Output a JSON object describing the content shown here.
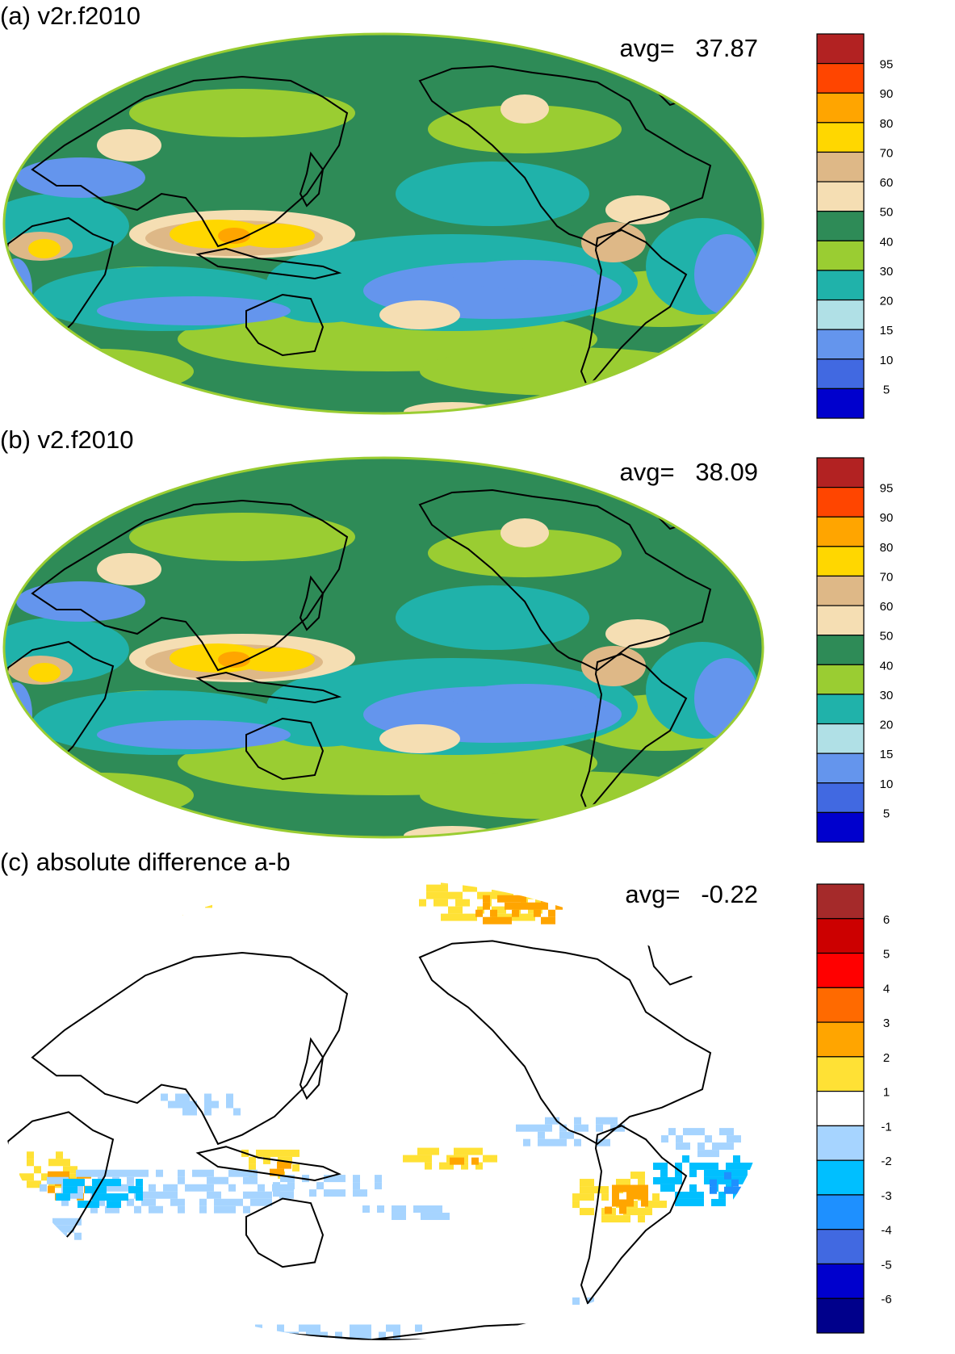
{
  "panels": [
    {
      "id": "a",
      "title": "(a) v2r.f2010",
      "avg_label": "avg=",
      "avg_value": "37.87",
      "colorbar": {
        "labels": [
          "95",
          "90",
          "80",
          "70",
          "60",
          "50",
          "40",
          "30",
          "20",
          "15",
          "10",
          "5"
        ],
        "colors": [
          "#b22222",
          "#ff4500",
          "#ffa500",
          "#ffd700",
          "#deb887",
          "#f5deb3",
          "#2e8b57",
          "#9acd32",
          "#20b2aa",
          "#b0e0e6",
          "#6495ed",
          "#4169e1",
          "#0000cd"
        ]
      },
      "regions": [
        {
          "color": "#9acd32",
          "label": "30"
        },
        {
          "color": "#20b2aa",
          "label": "20"
        },
        {
          "color": "#6495ed",
          "label": "10"
        },
        {
          "color": "#f5deb3",
          "label": "50"
        },
        {
          "color": "#deb887",
          "label": "60"
        },
        {
          "color": "#ffd700",
          "label": "70"
        },
        {
          "color": "#ffa500",
          "label": "80"
        }
      ]
    },
    {
      "id": "b",
      "title": "(b) v2.f2010",
      "avg_label": "avg=",
      "avg_value": "38.09",
      "colorbar": {
        "labels": [
          "95",
          "90",
          "80",
          "70",
          "60",
          "50",
          "40",
          "30",
          "20",
          "15",
          "10",
          "5"
        ],
        "colors": [
          "#b22222",
          "#ff4500",
          "#ffa500",
          "#ffd700",
          "#deb887",
          "#f5deb3",
          "#2e8b57",
          "#9acd32",
          "#20b2aa",
          "#b0e0e6",
          "#6495ed",
          "#4169e1",
          "#0000cd"
        ]
      },
      "regions": [
        {
          "color": "#9acd32",
          "label": "30"
        },
        {
          "color": "#20b2aa",
          "label": "20"
        },
        {
          "color": "#6495ed",
          "label": "10"
        },
        {
          "color": "#f5deb3",
          "label": "50"
        },
        {
          "color": "#deb887",
          "label": "60"
        },
        {
          "color": "#ffd700",
          "label": "70"
        },
        {
          "color": "#ffa500",
          "label": "80"
        }
      ]
    },
    {
      "id": "c",
      "title": "(c) absolute difference a-b",
      "avg_label": "avg=",
      "avg_value": "-0.22",
      "colorbar": {
        "labels": [
          "6",
          "5",
          "4",
          "3",
          "2",
          "1",
          "-1",
          "-2",
          "-3",
          "-4",
          "-5",
          "-6"
        ],
        "colors": [
          "#a52a2a",
          "#cc0000",
          "#ff0000",
          "#ff6a00",
          "#ffa500",
          "#ffe135",
          "#ffffff",
          "#a6d4ff",
          "#00bfff",
          "#1e90ff",
          "#4169e1",
          "#0000cd",
          "#00008b"
        ]
      },
      "regions": [
        {
          "color": "#ffe135",
          "label": "1"
        },
        {
          "color": "#ffa500",
          "label": "2"
        },
        {
          "color": "#a6d4ff",
          "label": "-1"
        },
        {
          "color": "#00bfff",
          "label": "-2"
        },
        {
          "color": "#1e90ff",
          "label": "-3"
        }
      ]
    }
  ]
}
